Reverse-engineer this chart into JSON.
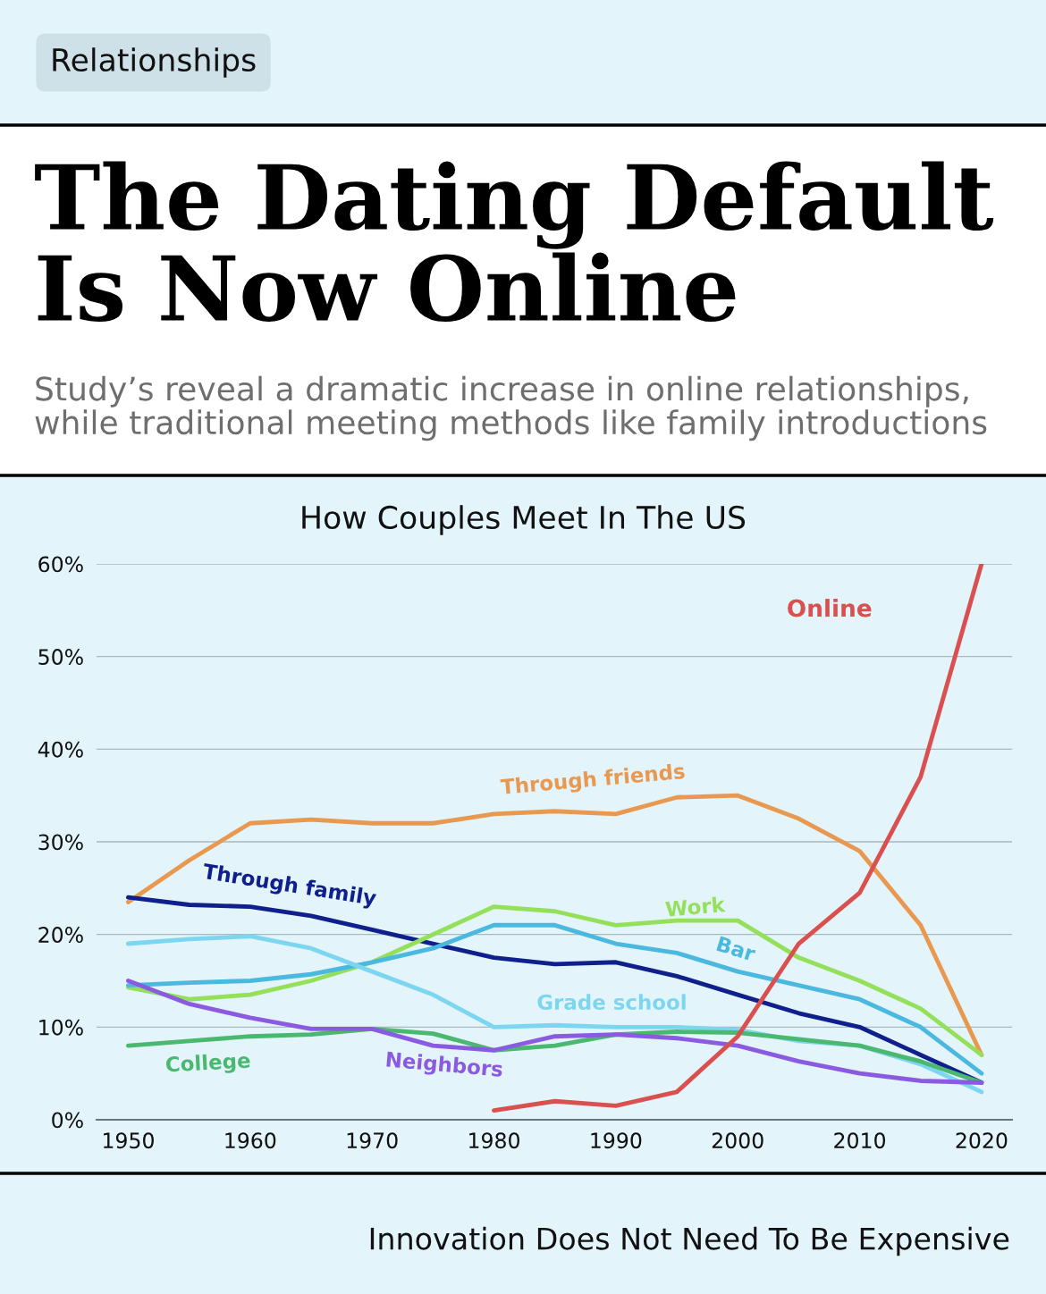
{
  "chart_data": {
    "type": "line",
    "title": "The Dating Default Is Now Online",
    "subtitle": "Study’s reveal a dramatic increase in online relationships, while traditional meeting methods like family introductions",
    "annotations": [
      "Relationships",
      "How Couples Meet In The US",
      "Innovation Does Not Need To Be Expensive"
    ],
    "x": [
      1950,
      1955,
      1960,
      1965,
      1970,
      1975,
      1980,
      1985,
      1990,
      1995,
      2000,
      2005,
      2010,
      2015,
      2020
    ],
    "series": [
      {
        "name": "Through friends",
        "color": "#e8994f",
        "values": [
          23.5,
          28,
          32,
          32.4,
          32,
          32,
          33,
          33.3,
          33,
          34.8,
          35,
          32.5,
          29,
          21,
          7
        ]
      },
      {
        "name": "Through family",
        "color": "#0f1f8c",
        "values": [
          24,
          23.2,
          23,
          22,
          20.5,
          19,
          17.5,
          16.8,
          17,
          15.5,
          13.5,
          11.5,
          10,
          7,
          4
        ]
      },
      {
        "name": "Work",
        "color": "#94e05a",
        "values": [
          14.3,
          13,
          13.5,
          15,
          17,
          20,
          23,
          22.5,
          21,
          21.5,
          21.5,
          17.5,
          15,
          12,
          7
        ]
      },
      {
        "name": "Bar",
        "color": "#4bb8e0",
        "values": [
          14.5,
          14.8,
          15,
          15.7,
          17,
          18.5,
          21,
          21,
          19,
          18,
          16,
          14.5,
          13,
          10,
          5
        ]
      },
      {
        "name": "Grade school",
        "color": "#7dd6f0",
        "values": [
          19,
          19.5,
          19.8,
          18.5,
          16,
          13.5,
          10,
          10.2,
          10,
          10,
          9.7,
          8.5,
          8,
          6,
          3
        ]
      },
      {
        "name": "College",
        "color": "#4ab86e",
        "values": [
          8,
          8.5,
          9,
          9.2,
          9.8,
          9.3,
          7.5,
          8,
          9.2,
          9.5,
          9.4,
          8.7,
          8,
          6.3,
          4
        ]
      },
      {
        "name": "Neighbors",
        "color": "#8a5be0",
        "values": [
          15,
          12.5,
          11,
          9.8,
          9.8,
          8,
          7.5,
          9,
          9.2,
          8.8,
          8,
          6.3,
          5,
          4.2,
          4
        ]
      },
      {
        "name": "Online",
        "color": "#d9504f",
        "values": [
          null,
          null,
          null,
          null,
          null,
          null,
          1,
          2,
          1.5,
          3,
          9,
          19,
          24.5,
          37,
          60
        ]
      }
    ],
    "xlim": [
      1947.4,
      2022.5
    ],
    "ylim": [
      0,
      60
    ],
    "xticks": [
      1950,
      1960,
      1970,
      1980,
      1990,
      2000,
      2010,
      2020
    ],
    "yticks": [
      {
        "value": 0,
        "label": "0%"
      },
      {
        "value": 10,
        "label": "10%"
      },
      {
        "value": 20,
        "label": "20%"
      },
      {
        "value": 30,
        "label": "30%"
      },
      {
        "value": 40,
        "label": "40%"
      },
      {
        "value": 50,
        "label": "50%"
      },
      {
        "value": 60,
        "label": "60%"
      }
    ],
    "grid": "y",
    "marker": "none",
    "line_style": "solid",
    "legend": false
  }
}
